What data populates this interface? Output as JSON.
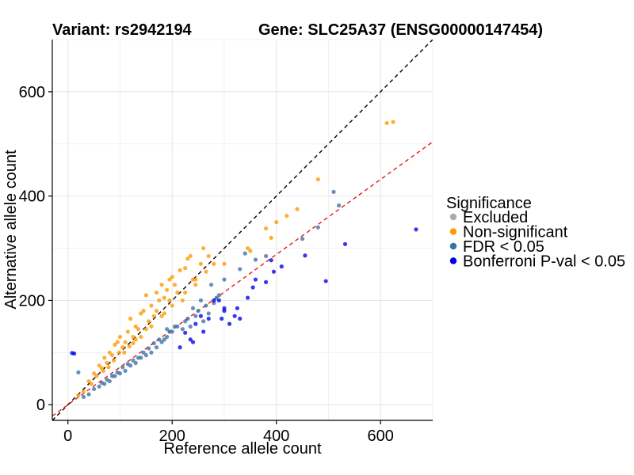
{
  "chart_data": {
    "type": "scatter",
    "title_left": "Variant: rs2942194",
    "title_right": "Gene: SLC25A37 (ENSG00000147454)",
    "xlabel": "Reference allele count",
    "ylabel": "Alternative allele count",
    "xlim": [
      -30,
      700
    ],
    "ylim": [
      -30,
      700
    ],
    "x_ticks": [
      0,
      200,
      400,
      600
    ],
    "y_ticks": [
      0,
      200,
      400,
      600
    ],
    "grid": true,
    "reference_lines": [
      {
        "name": "identity",
        "slope": 1.0,
        "intercept": 0,
        "color": "#000000",
        "style": "dashed"
      },
      {
        "name": "fit",
        "slope": 0.72,
        "intercept": 0,
        "color": "#e41a1c",
        "style": "dashed"
      }
    ],
    "legend": {
      "title": "Significance",
      "placement": "right",
      "entries": [
        {
          "label": "Excluded",
          "color": "#aaaaaa"
        },
        {
          "label": "Non-significant",
          "color": "#ff9900"
        },
        {
          "label": "FDR < 0.05",
          "color": "#3b6fa8"
        },
        {
          "label": "Bonferroni P-val < 0.05",
          "color": "#0000ee"
        }
      ]
    },
    "series": [
      {
        "name": "Non-significant",
        "color": "#ff9900",
        "points": [
          [
            612,
            540
          ],
          [
            624,
            542
          ],
          [
            480,
            432
          ],
          [
            440,
            375
          ],
          [
            420,
            362
          ],
          [
            400,
            350
          ],
          [
            390,
            320
          ],
          [
            380,
            338
          ],
          [
            345,
            300
          ],
          [
            350,
            295
          ],
          [
            300,
            270
          ],
          [
            280,
            270
          ],
          [
            270,
            285
          ],
          [
            255,
            270
          ],
          [
            235,
            285
          ],
          [
            230,
            280
          ],
          [
            225,
            262
          ],
          [
            215,
            258
          ],
          [
            200,
            245
          ],
          [
            195,
            240
          ],
          [
            190,
            220
          ],
          [
            180,
            230
          ],
          [
            175,
            200
          ],
          [
            170,
            215
          ],
          [
            160,
            190
          ],
          [
            150,
            210
          ],
          [
            145,
            180
          ],
          [
            140,
            175
          ],
          [
            130,
            150
          ],
          [
            120,
            165
          ],
          [
            115,
            140
          ],
          [
            100,
            130
          ],
          [
            95,
            120
          ],
          [
            90,
            115
          ],
          [
            80,
            100
          ],
          [
            70,
            90
          ],
          [
            60,
            75
          ],
          [
            50,
            60
          ],
          [
            40,
            45
          ],
          [
            30,
            25
          ],
          [
            20,
            18
          ],
          [
            265,
            255
          ],
          [
            245,
            240
          ],
          [
            260,
            300
          ],
          [
            245,
            230
          ],
          [
            220,
            200
          ],
          [
            205,
            230
          ],
          [
            195,
            200
          ],
          [
            185,
            205
          ],
          [
            165,
            170
          ],
          [
            155,
            160
          ],
          [
            135,
            145
          ],
          [
            125,
            130
          ],
          [
            110,
            120
          ],
          [
            105,
            110
          ],
          [
            85,
            95
          ],
          [
            75,
            80
          ],
          [
            65,
            70
          ],
          [
            55,
            55
          ],
          [
            45,
            40
          ],
          [
            210,
            215
          ],
          [
            185,
            175
          ],
          [
            170,
            180
          ],
          [
            150,
            145
          ],
          [
            130,
            125
          ],
          [
            118,
            112
          ],
          [
            98,
            100
          ],
          [
            88,
            85
          ],
          [
            78,
            72
          ],
          [
            68,
            65
          ],
          [
            240,
            240
          ],
          [
            225,
            215
          ],
          [
            200,
            190
          ],
          [
            180,
            170
          ],
          [
            160,
            150
          ],
          [
            140,
            130
          ],
          [
            125,
            118
          ],
          [
            108,
            100
          ]
        ]
      },
      {
        "name": "FDR < 0.05",
        "color": "#3b6fa8",
        "points": [
          [
            510,
            408
          ],
          [
            520,
            382
          ],
          [
            480,
            340
          ],
          [
            450,
            318
          ],
          [
            380,
            285
          ],
          [
            360,
            278
          ],
          [
            340,
            290
          ],
          [
            330,
            260
          ],
          [
            300,
            240
          ],
          [
            290,
            210
          ],
          [
            285,
            205
          ],
          [
            270,
            175
          ],
          [
            250,
            180
          ],
          [
            260,
            160
          ],
          [
            235,
            150
          ],
          [
            220,
            145
          ],
          [
            200,
            140
          ],
          [
            190,
            130
          ],
          [
            180,
            120
          ],
          [
            170,
            110
          ],
          [
            160,
            100
          ],
          [
            150,
            95
          ],
          [
            140,
            90
          ],
          [
            130,
            80
          ],
          [
            120,
            75
          ],
          [
            110,
            65
          ],
          [
            100,
            60
          ],
          [
            90,
            55
          ],
          [
            80,
            45
          ],
          [
            70,
            40
          ],
          [
            60,
            35
          ],
          [
            50,
            30
          ],
          [
            40,
            20
          ],
          [
            30,
            15
          ],
          [
            20,
            62
          ],
          [
            275,
            230
          ],
          [
            280,
            195
          ],
          [
            265,
            190
          ],
          [
            245,
            170
          ],
          [
            230,
            165
          ],
          [
            210,
            150
          ],
          [
            195,
            140
          ],
          [
            185,
            125
          ],
          [
            175,
            125
          ],
          [
            165,
            118
          ],
          [
            155,
            108
          ],
          [
            145,
            100
          ],
          [
            135,
            90
          ],
          [
            125,
            85
          ],
          [
            115,
            78
          ],
          [
            105,
            72
          ],
          [
            95,
            62
          ],
          [
            85,
            55
          ],
          [
            75,
            48
          ],
          [
            65,
            42
          ],
          [
            255,
            200
          ],
          [
            240,
            185
          ],
          [
            225,
            160
          ],
          [
            205,
            150
          ],
          [
            190,
            145
          ]
        ]
      },
      {
        "name": "Bonferroni P-val < 0.05",
        "color": "#0000ee",
        "points": [
          [
            668,
            336
          ],
          [
            532,
            308
          ],
          [
            455,
            286
          ],
          [
            410,
            265
          ],
          [
            395,
            255
          ],
          [
            390,
            277
          ],
          [
            380,
            235
          ],
          [
            360,
            240
          ],
          [
            355,
            225
          ],
          [
            345,
            205
          ],
          [
            330,
            165
          ],
          [
            325,
            185
          ],
          [
            320,
            170
          ],
          [
            310,
            155
          ],
          [
            300,
            185
          ],
          [
            295,
            165
          ],
          [
            290,
            200
          ],
          [
            280,
            200
          ],
          [
            270,
            165
          ],
          [
            260,
            140
          ],
          [
            255,
            170
          ],
          [
            245,
            155
          ],
          [
            240,
            120
          ],
          [
            235,
            125
          ],
          [
            225,
            138
          ],
          [
            215,
            110
          ],
          [
            8,
            99
          ],
          [
            12,
            98
          ],
          [
            495,
            237
          ],
          [
            300,
            180
          ]
        ]
      }
    ]
  }
}
